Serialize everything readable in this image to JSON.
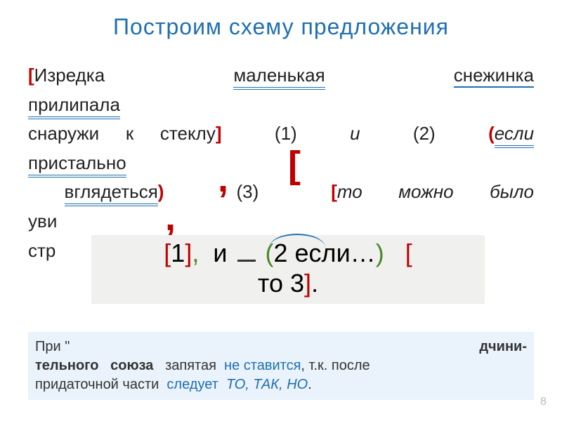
{
  "title": "Построим схему предложения",
  "sentence": {
    "line1": {
      "open_bracket": "[",
      "word1": "Изредка",
      "word2": "маленькая",
      "word3": "снежинка"
    },
    "line1b": "прилипала",
    "line2": {
      "part_a": "снаружи  к  стеклу",
      "close_bracket": "]",
      "num1": "(1)",
      "conj_i": "и",
      "num2": "(2)",
      "open_paren": "(",
      "word_esli": "если"
    },
    "line2b": "пристально",
    "line3": {
      "word_vgl": "вглядеться",
      "close_paren": ")",
      "num3": "(3)",
      "open_bracket2": "[",
      "rest": "то  можно  было"
    },
    "line3b": "уви",
    "line4": {
      "cutoff": " стр"
    }
  },
  "floats": {
    "comma1": ",",
    "bracket_open": "[",
    "comma2": ",",
    "bracket_close": "]"
  },
  "schema": {
    "part1_open": "[",
    "part1_num": "1",
    "part1_close": "]",
    "comma": ",",
    "conj_i": "и",
    "paren_open": "(",
    "part2_text": "2 если…",
    "paren_close": ")",
    "bracket2_open": "[",
    "line2_text": "то 3",
    "bracket2_close": "]",
    "period": "."
  },
  "note": {
    "pri": "При \"",
    "cutoff_mid": "",
    "right_cut": "дчини-",
    "line2_a": "тельного",
    "line2_b": "союза",
    "line2_c": "запятая",
    "not_put": "не ставится",
    "tk": ", т.к. после",
    "line3_a": "придаточной части",
    "follows": "следует",
    "to_tak_no": "ТО, ТАК, НО",
    "period": "."
  },
  "slide_number": "8",
  "colors": {
    "title": "#1f6fb2",
    "red": "#c00000",
    "green": "#4a8a2a",
    "note_bg": "#eaf3fb",
    "schema_bg": "#f0f0ee"
  }
}
